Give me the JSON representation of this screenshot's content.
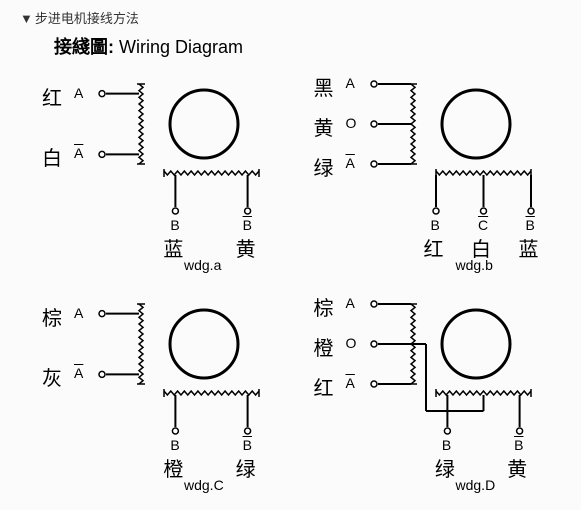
{
  "page_title": "步进电机接线方法",
  "subtitle_cn": "接綫圖:",
  "subtitle_en": "Wiring Diagram",
  "colors": {
    "stroke": "#000000",
    "bg": "#fbfbfb"
  },
  "diagrams": [
    {
      "id": "a",
      "caption": "wdg.a",
      "left_wires": [
        {
          "color": "红",
          "sym": "A",
          "bar": false
        },
        {
          "color": "白",
          "sym": "A",
          "bar": true
        }
      ],
      "bottom_wires": [
        {
          "color": "蓝",
          "sym": "B",
          "bar": false
        },
        {
          "color": "黄",
          "sym": "B",
          "bar": true
        }
      ]
    },
    {
      "id": "b",
      "caption": "wdg.b",
      "left_wires": [
        {
          "color": "黑",
          "sym": "A",
          "bar": false
        },
        {
          "color": "黄",
          "sym": "O",
          "bar": false
        },
        {
          "color": "绿",
          "sym": "A",
          "bar": true
        }
      ],
      "bottom_wires": [
        {
          "color": "红",
          "sym": "B",
          "bar": false
        },
        {
          "color": "白",
          "sym": "C",
          "bar": true
        },
        {
          "color": "蓝",
          "sym": "B",
          "bar": true
        }
      ]
    },
    {
      "id": "c",
      "caption": "wdg.C",
      "left_wires": [
        {
          "color": "棕",
          "sym": "A",
          "bar": false
        },
        {
          "color": "灰",
          "sym": "A",
          "bar": true
        }
      ],
      "bottom_wires": [
        {
          "color": "橙",
          "sym": "B",
          "bar": false
        },
        {
          "color": "绿",
          "sym": "B",
          "bar": true
        }
      ]
    },
    {
      "id": "d",
      "caption": "wdg.D",
      "left_wires": [
        {
          "color": "棕",
          "sym": "A",
          "bar": false
        },
        {
          "color": "橙",
          "sym": "O",
          "bar": false
        },
        {
          "color": "红",
          "sym": "A",
          "bar": true
        }
      ],
      "bottom_wires": [
        {
          "color": "绿",
          "sym": "B",
          "bar": false
        },
        {
          "color": "黄",
          "sym": "B",
          "bar": true
        }
      ]
    }
  ]
}
